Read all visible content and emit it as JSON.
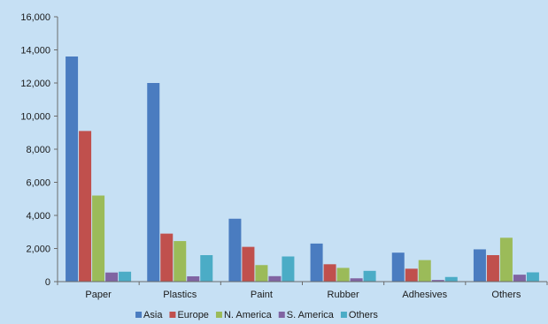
{
  "chart_data": {
    "type": "bar",
    "title": "",
    "xlabel": "",
    "ylabel": "",
    "categories": [
      "Paper",
      "Plastics",
      "Paint",
      "Rubber",
      "Adhesives",
      "Others"
    ],
    "series": [
      {
        "name": "Asia",
        "color": "#4a7cc0",
        "values": [
          13600,
          12000,
          3800,
          2300,
          1750,
          1950
        ]
      },
      {
        "name": "Europe",
        "color": "#c0504d",
        "values": [
          9100,
          2900,
          2100,
          1050,
          780,
          1600
        ]
      },
      {
        "name": "N. America",
        "color": "#9bbb59",
        "values": [
          5200,
          2450,
          1000,
          830,
          1300,
          2650
        ]
      },
      {
        "name": "S. America",
        "color": "#8064a2",
        "values": [
          550,
          320,
          330,
          200,
          100,
          420
        ]
      },
      {
        "name": "Others",
        "color": "#4bacc6",
        "values": [
          600,
          1600,
          1520,
          650,
          280,
          560
        ]
      }
    ],
    "ylim": [
      0,
      16000
    ],
    "yticks": [
      0,
      2000,
      4000,
      6000,
      8000,
      10000,
      12000,
      14000,
      16000
    ],
    "ytick_labels": [
      "0",
      "2,000",
      "4,000",
      "6,000",
      "8,000",
      "10,000",
      "12,000",
      "14,000",
      "16,000"
    ],
    "grid": false,
    "legend_position": "bottom"
  }
}
